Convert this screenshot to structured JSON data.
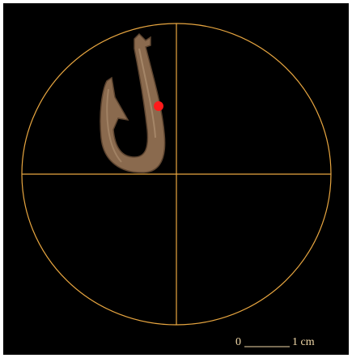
{
  "scale_bar": {
    "start_label": "0",
    "end_label": "1 cm"
  }
}
